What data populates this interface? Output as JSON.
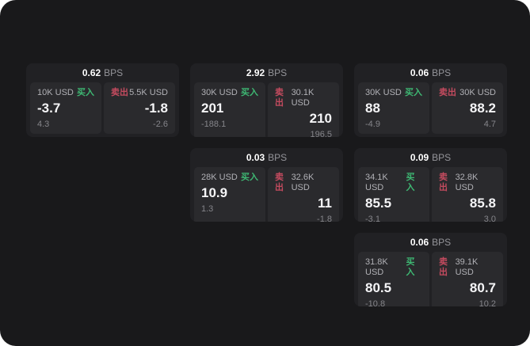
{
  "labels": {
    "bps": "BPS",
    "buy": "买入",
    "sell": "卖出"
  },
  "colors": {
    "surface_bg": "#19191b",
    "card_bg": "#212124",
    "panel_bg": "#2a2a2d",
    "buy_color": "#3eb873",
    "sell_color": "#c44b5f"
  },
  "cards": [
    {
      "bps": "0.62",
      "buy": {
        "size": "10K USD",
        "value": "-3.7",
        "sub": "4.3"
      },
      "sell": {
        "size": "5.5K USD",
        "value": "-1.8",
        "sub": "-2.6"
      }
    },
    {
      "bps": "2.92",
      "buy": {
        "size": "30K USD",
        "value": "201",
        "sub": "-188.1"
      },
      "sell": {
        "size": "30.1K USD",
        "value": "210",
        "sub": "196.5"
      }
    },
    {
      "bps": "0.06",
      "buy": {
        "size": "30K USD",
        "value": "88",
        "sub": "-4.9"
      },
      "sell": {
        "size": "30K USD",
        "value": "88.2",
        "sub": "4.7"
      }
    },
    {
      "bps": "0.03",
      "buy": {
        "size": "28K USD",
        "value": "10.9",
        "sub": "1.3"
      },
      "sell": {
        "size": "32.6K USD",
        "value": "11",
        "sub": "-1.8"
      }
    },
    {
      "bps": "0.09",
      "buy": {
        "size": "34.1K USD",
        "value": "85.5",
        "sub": "-3.1"
      },
      "sell": {
        "size": "32.8K USD",
        "value": "85.8",
        "sub": "3.0"
      }
    },
    {
      "bps": "0.06",
      "buy": {
        "size": "31.8K USD",
        "value": "80.5",
        "sub": "-10.8"
      },
      "sell": {
        "size": "39.1K USD",
        "value": "80.7",
        "sub": "10.2"
      }
    }
  ]
}
